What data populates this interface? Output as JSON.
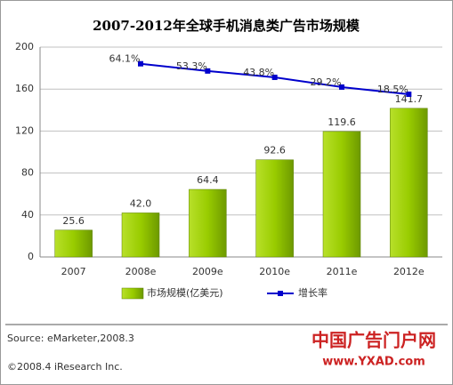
{
  "chart_data": {
    "type": "bar_line",
    "title": "2007-2012年全球手机消息类广告市场规模",
    "categories": [
      "2007",
      "2008e",
      "2009e",
      "2010e",
      "2011e",
      "2012e"
    ],
    "series": [
      {
        "name": "市场规模(亿美元)",
        "color": "#99cc00",
        "values": [
          25.6,
          42.0,
          64.4,
          92.6,
          119.6,
          141.7
        ],
        "value_labels": [
          "25.6",
          "42.0",
          "64.4",
          "92.6",
          "119.6",
          "141.7"
        ]
      },
      {
        "name": "增长率",
        "color": "#0000cc",
        "axis": "y2",
        "values": [
          null,
          64.1,
          53.3,
          43.8,
          29.2,
          18.5
        ],
        "value_labels": [
          null,
          "64.1%",
          "53.3%",
          "43.8%",
          "29.2%",
          "18.5%"
        ]
      }
    ],
    "ylim": [
      0,
      200
    ],
    "yticks": [
      0,
      40,
      80,
      120,
      160,
      200
    ],
    "y2lim": [
      -225,
      89
    ],
    "grid": true,
    "legend": "bottom"
  },
  "source": "Source: eMarketer,2008.3",
  "copyright": "©2008.4 iResearch Inc.",
  "watermark": {
    "name": "中国广告门户网",
    "url": "www.YXAD.com"
  }
}
